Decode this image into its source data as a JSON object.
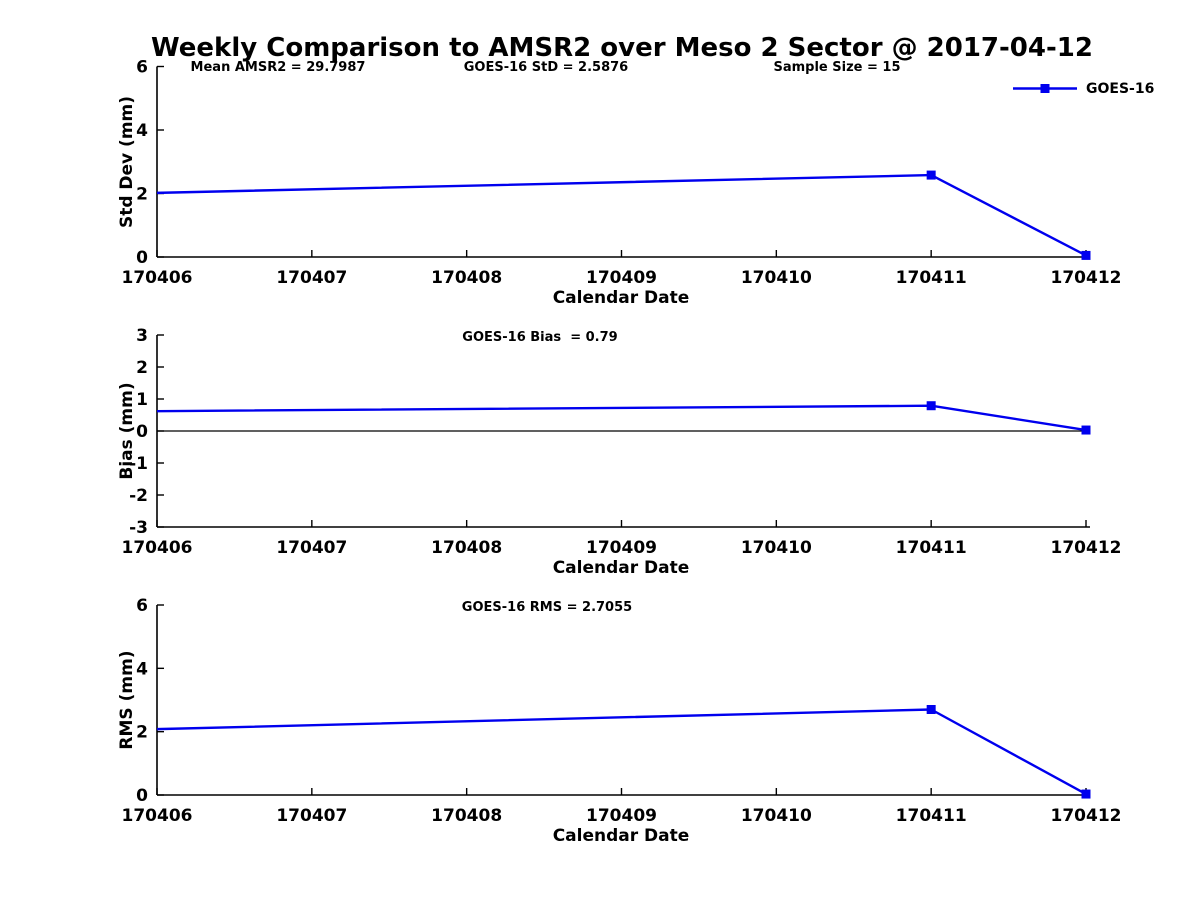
{
  "page": {
    "title": "Weekly Comparison to AMSR2 over Meso 2 Sector @ 2017-04-12"
  },
  "legend": {
    "label": "GOES-16",
    "color": "#0000EE"
  },
  "chart_data": [
    {
      "type": "line",
      "name": "std-dev-vs-date",
      "annotations": [
        "Mean AMSR2 = 29.7987",
        "GOES-16 StD = 2.5876",
        "Sample Size = 15"
      ],
      "xlabel": "Calendar Date",
      "ylabel": "Std Dev (mm)",
      "x_ticks": [
        "170406",
        "170407",
        "170408",
        "170409",
        "170410",
        "170411",
        "170412"
      ],
      "y_ticks": [
        "0",
        "2",
        "4",
        "6"
      ],
      "ylim": [
        0,
        6
      ],
      "zero_line": false,
      "grid": false,
      "legend_position": "top-right-outside",
      "series": [
        {
          "name": "GOES-16",
          "color": "#0000EE",
          "points": [
            {
              "x": "170406",
              "y": 2.02,
              "marker": false
            },
            {
              "x": "170411",
              "y": 2.58,
              "marker": true
            },
            {
              "x": "170412",
              "y": 0.05,
              "marker": true
            }
          ]
        }
      ]
    },
    {
      "type": "line",
      "name": "bias-vs-date",
      "annotations": [
        "GOES-16 Bias  = 0.79"
      ],
      "xlabel": "Calendar Date",
      "ylabel": "Bias (mm)",
      "x_ticks": [
        "170406",
        "170407",
        "170408",
        "170409",
        "170410",
        "170411",
        "170412"
      ],
      "y_ticks": [
        "-3",
        "-2",
        "-1",
        "0",
        "1",
        "2",
        "3"
      ],
      "ylim": [
        -3,
        3
      ],
      "zero_line": true,
      "grid": false,
      "series": [
        {
          "name": "GOES-16",
          "color": "#0000EE",
          "points": [
            {
              "x": "170406",
              "y": 0.62,
              "marker": false
            },
            {
              "x": "170411",
              "y": 0.79,
              "marker": true
            },
            {
              "x": "170412",
              "y": 0.03,
              "marker": true
            }
          ]
        }
      ]
    },
    {
      "type": "line",
      "name": "rms-vs-date",
      "annotations": [
        "GOES-16 RMS = 2.7055"
      ],
      "xlabel": "Calendar Date",
      "ylabel": "RMS (mm)",
      "x_ticks": [
        "170406",
        "170407",
        "170408",
        "170409",
        "170410",
        "170411",
        "170412"
      ],
      "y_ticks": [
        "0",
        "2",
        "4",
        "6"
      ],
      "ylim": [
        0,
        6
      ],
      "zero_line": false,
      "grid": false,
      "series": [
        {
          "name": "GOES-16",
          "color": "#0000EE",
          "points": [
            {
              "x": "170406",
              "y": 2.08,
              "marker": false
            },
            {
              "x": "170411",
              "y": 2.7,
              "marker": true
            },
            {
              "x": "170412",
              "y": 0.03,
              "marker": true
            }
          ]
        }
      ]
    }
  ]
}
